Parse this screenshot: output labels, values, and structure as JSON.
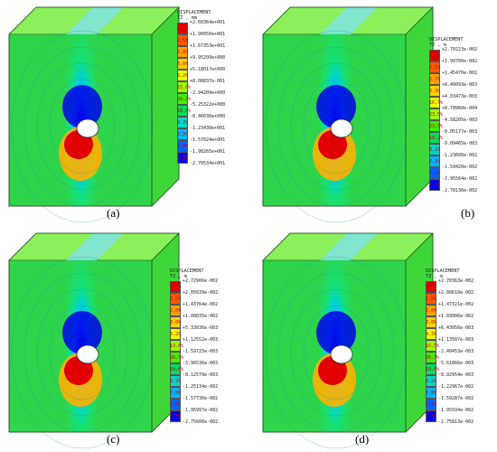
{
  "panels": [
    {
      "id": "a",
      "caption": "(a)",
      "legend_title": "DISPLACEMENT\nTZ , mm",
      "percentages": [
        "5.0%",
        "2.5%",
        "2.0%",
        "3.0%",
        "5.2%",
        "15.0%",
        "28.2%",
        "18.0%",
        "8.2%",
        "7.3%",
        "7.3%",
        "7.3%"
      ],
      "ticks": [
        "+2.60364e+001",
        "+1.90050e+001",
        "+1.67353e+001",
        "+9.95209e+000",
        "+5.18017e+000",
        "+8.08837e-001",
        "-2.94209e+000",
        "-5.25322e+000",
        "-8.46036e+000",
        "-1.23430e+001",
        "-1.57024e+001",
        "-1.98265e+001",
        "-2.70534e+001"
      ]
    },
    {
      "id": "b",
      "caption": "(b)",
      "legend_title": "DISPLACEMENT\nTZ , m",
      "percentages": [
        "3.2%",
        "2.5%",
        "2.7%",
        "5.3%",
        "16.7%",
        "23.5%",
        "23.5%",
        "10.2%",
        "8.2%",
        "7.3%",
        "7.5%",
        "7.3%"
      ],
      "ticks": [
        "+2.70223e-002",
        "+1.99700e-002",
        "+1.45470e-002",
        "+8.40093e-003",
        "+4.03473e-003",
        "+8.78960e-004",
        "-4.58205e-003",
        "-8.05177e-003",
        "-9.09465e-003",
        "-1.23606e-002",
        "-1.59420e-002",
        "-1.95564e-002",
        "-2.78136e-002"
      ]
    },
    {
      "id": "c",
      "caption": "(c)",
      "legend_title": "DISPLACEMENT\nTZ , m",
      "percentages": [
        "5.0%",
        "2.5%",
        "2.0%",
        "3.0%",
        "5.2%",
        "13.0%",
        "26.7%",
        "18.6%",
        "8.2%",
        "7.9%",
        "7.9%",
        "7.3%"
      ],
      "ticks": [
        "+2.72906e-002",
        "+2.05639e-002",
        "+1.43764e-002",
        "+1.08035e-002",
        "+5.33036e-003",
        "+1.12552e-003",
        "-1.59725e-003",
        "-3.96536e-003",
        "-8.12579e-003",
        "-1.25134e-002",
        "-1.57730e-002",
        "-1.95997e-002",
        "-2.75600e-002"
      ]
    },
    {
      "id": "d",
      "caption": "(d)",
      "legend_title": "DISPLACEMENT\nTZ , m",
      "percentages": [
        "5.0%",
        "2.5%",
        "2.0%",
        "3.0%",
        "4.3%",
        "15.5%",
        "26.7%",
        "10.5%",
        "8.2%",
        "7.9%",
        "7.3%",
        "7.3%"
      ],
      "ticks": [
        "+2.70363e-002",
        "+2.00610e-002",
        "+1.47321e-002",
        "+1.03006e-002",
        "+6.43056e-003",
        "+1.13507e-003",
        "-2.40453e-003",
        "-5.61866e-003",
        "-8.92954e-003",
        "-1.22967e-002",
        "-1.59287e-002",
        "-1.95594e-002",
        "-2.75813e-002"
      ]
    }
  ],
  "colors": {
    "legend": [
      "#e00000",
      "#ff5a00",
      "#ffa000",
      "#ffd000",
      "#e6ff00",
      "#9aff00",
      "#3cf000",
      "#00e05a",
      "#00d7c8",
      "#00b4ff",
      "#0064ff",
      "#0000e6"
    ]
  }
}
